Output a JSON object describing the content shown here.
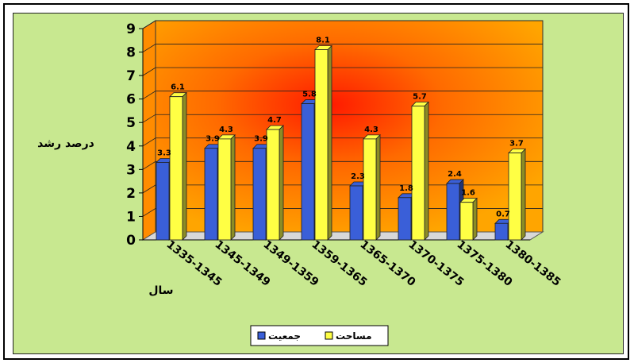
{
  "chart_data": {
    "type": "bar",
    "title": "",
    "xlabel": "سال",
    "ylabel": "درصد رشد",
    "ylim": [
      0,
      9
    ],
    "yticks": [
      "0",
      "1",
      "2",
      "3",
      "4",
      "5",
      "6",
      "7",
      "8",
      "9"
    ],
    "categories": [
      "1335-1345",
      "1345-1349",
      "1349-1359",
      "1359-1365",
      "1365-1370",
      "1370-1375",
      "1375-1380",
      "1380-1385"
    ],
    "series": [
      {
        "name": "جمعیت",
        "values": [
          3.3,
          3.9,
          3.9,
          5.8,
          2.3,
          1.8,
          2.4,
          0.7
        ],
        "labels": [
          "3.3",
          "3.9",
          "3.9",
          "5.8",
          "2.3",
          "1.8",
          "2.4",
          "0.7"
        ],
        "color": "#3a5fd8"
      },
      {
        "name": "مساحت",
        "values": [
          6.1,
          4.3,
          4.7,
          8.1,
          4.3,
          5.7,
          1.6,
          3.7
        ],
        "labels": [
          "6.1",
          "4.3",
          "4.7",
          "8.1",
          "4.3",
          "5.7",
          "1.6",
          "3.7"
        ],
        "color": "#ffff44"
      }
    ],
    "legend_position": "bottom-center",
    "grid": true,
    "three_d": true,
    "colors": {
      "chart_background": "#c8e890",
      "plot_center": "#ff1a00",
      "plot_edge": "#ffa500"
    }
  }
}
